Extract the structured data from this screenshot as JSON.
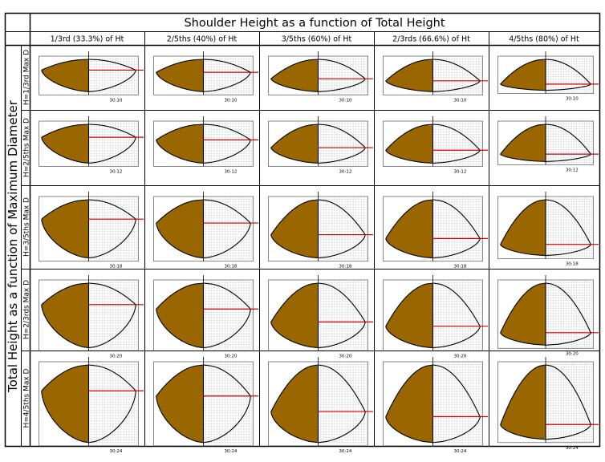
{
  "title": "Shoulder Height as a function of Total Height",
  "row_axis_title": "Total Height as a function of Maximum Diameter",
  "columns": [
    {
      "label": "1/3rd (33.3%) of Ht",
      "shoulder_fraction": 0.333
    },
    {
      "label": "2/5ths (40%) of Ht",
      "shoulder_fraction": 0.4
    },
    {
      "label": "3/5ths (60%) of Ht",
      "shoulder_fraction": 0.6
    },
    {
      "label": "2/3rds (66.6%) of Ht",
      "shoulder_fraction": 0.666
    },
    {
      "label": "4/5ths (80%) of Ht",
      "shoulder_fraction": 0.8
    }
  ],
  "rows": [
    {
      "label": "H=1/3rd Max D",
      "height_fraction": 0.333,
      "ratio": "30:10"
    },
    {
      "label": "H=2/5ths Max D",
      "height_fraction": 0.4,
      "ratio": "30:12"
    },
    {
      "label": "H=3/5ths Max D",
      "height_fraction": 0.6,
      "ratio": "30:18"
    },
    {
      "label": "H=2/3rds Max D",
      "height_fraction": 0.666,
      "ratio": "30:20"
    },
    {
      "label": "H=4/5ths Max D",
      "height_fraction": 0.8,
      "ratio": "30:24"
    }
  ],
  "colors": {
    "fill": "#996600",
    "profile": "#000000",
    "shoulder_line": "#cc0000",
    "grid": "#c8c8c8",
    "border": "#000000"
  }
}
